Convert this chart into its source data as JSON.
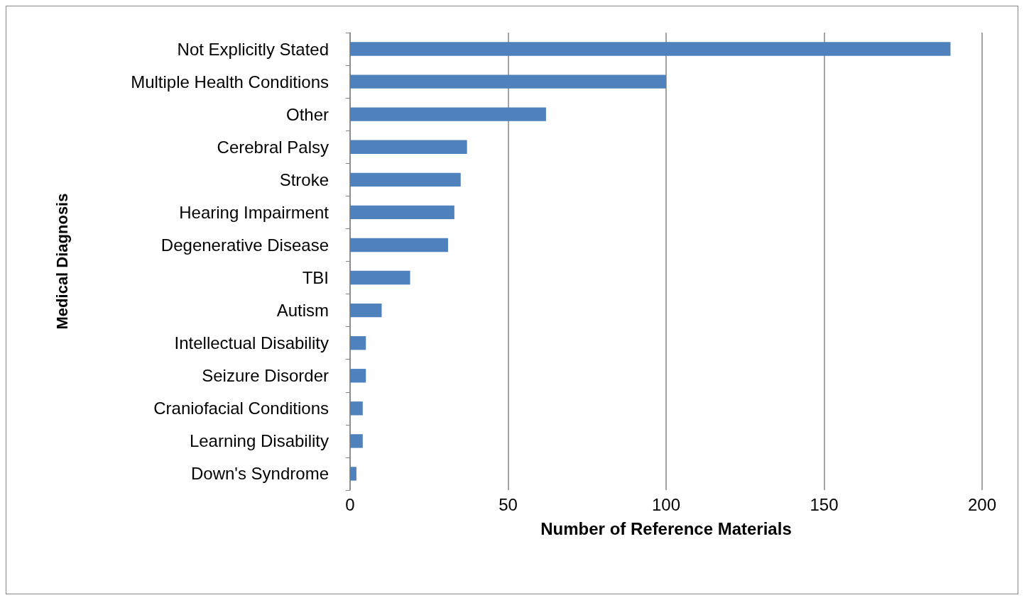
{
  "chart_data": {
    "type": "bar",
    "orientation": "horizontal",
    "xlabel": "Number of Reference Materials",
    "ylabel": "Medical Diagnosis",
    "categories": [
      "Not Explicitly Stated",
      "Multiple Health Conditions",
      "Other",
      "Cerebral Palsy",
      "Stroke",
      "Hearing Impairment",
      "Degenerative Disease",
      "TBI",
      "Autism",
      "Intellectual Disability",
      "Seizure Disorder",
      "Craniofacial Conditions",
      "Learning Disability",
      "Down's Syndrome"
    ],
    "values": [
      190,
      100,
      62,
      37,
      35,
      33,
      31,
      19,
      10,
      5,
      5,
      4,
      4,
      2
    ],
    "color": "#4f81bd",
    "xlim": [
      0,
      200
    ],
    "xticks": [
      0,
      50,
      100,
      150,
      200
    ],
    "grid": "x"
  }
}
